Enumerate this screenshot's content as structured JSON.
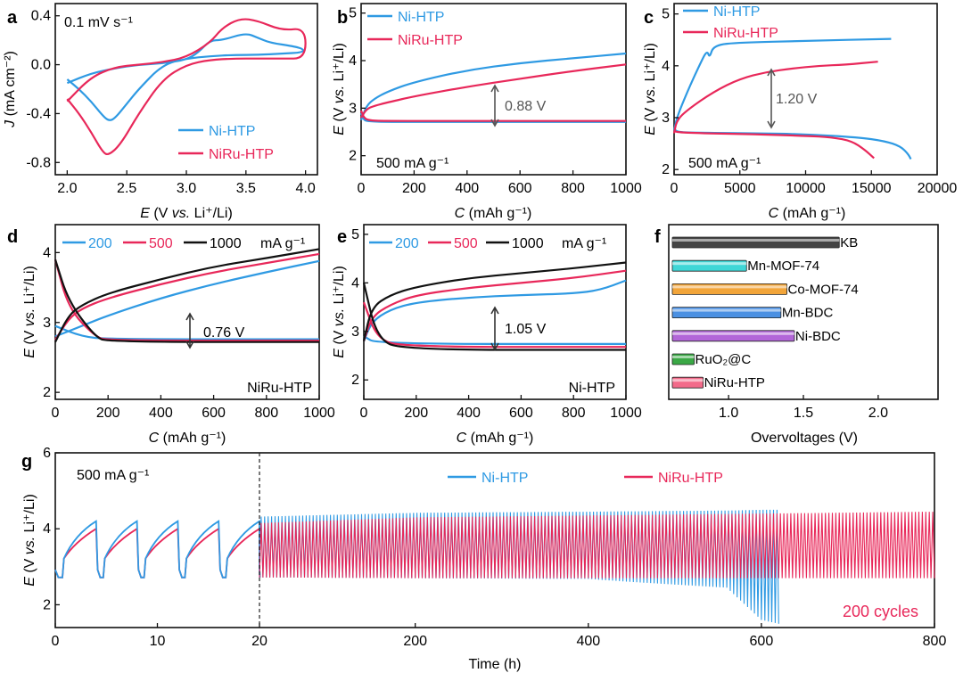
{
  "colors": {
    "blue": "#2f9ae3",
    "pink": "#e8285a",
    "black": "#111111",
    "gray": "#6b6b6b"
  },
  "panels": {
    "a": {
      "letter": "a",
      "annotation": "0.1 mV s⁻¹",
      "xlabel": [
        "E",
        " (V ",
        "vs.",
        " Li⁺/Li)"
      ],
      "ylabel": [
        "J",
        " (mA cm⁻²)"
      ],
      "xticks": [
        "2.0",
        "2.5",
        "3.0",
        "3.5",
        "4.0"
      ],
      "yticks": [
        "0.4",
        "0.0",
        "-0.4",
        "-0.8"
      ],
      "legend": [
        "Ni-HTP",
        "NiRu-HTP"
      ]
    },
    "b": {
      "letter": "b",
      "annotation": "500 mA g⁻¹",
      "gap_label": "0.88 V",
      "xlabel": [
        "C",
        " (mAh g⁻¹)"
      ],
      "ylabel": [
        "E",
        " (V ",
        "vs.",
        " Li⁺/Li)"
      ],
      "xticks": [
        "0",
        "200",
        "400",
        "600",
        "800",
        "1000"
      ],
      "yticks": [
        "2",
        "3",
        "4",
        "5"
      ],
      "legend": [
        "Ni-HTP",
        "NiRu-HTP"
      ]
    },
    "c": {
      "letter": "c",
      "annotation": "500 mA g⁻¹",
      "gap_label": "1.20 V",
      "xlabel": [
        "C",
        " (mAh g⁻¹)"
      ],
      "ylabel": [
        "E",
        " (V ",
        "vs.",
        " Li⁺/Li)"
      ],
      "xticks": [
        "0",
        "5000",
        "10000",
        "15000",
        "20000"
      ],
      "yticks": [
        "2",
        "3",
        "4",
        "5"
      ],
      "legend": [
        "Ni-HTP",
        "NiRu-HTP"
      ]
    },
    "d": {
      "letter": "d",
      "annotation": "NiRu-HTP",
      "gap_label": "0.76 V",
      "xlabel": [
        "C",
        " (mAh g⁻¹)"
      ],
      "ylabel": [
        "E",
        " (V ",
        "vs.",
        " Li⁺/Li)"
      ],
      "xticks": [
        "0",
        "200",
        "400",
        "600",
        "800",
        "1000"
      ],
      "yticks": [
        "2",
        "3",
        "4"
      ],
      "legend": [
        "200",
        "500",
        "1000"
      ],
      "legend_unit": "mA g⁻¹"
    },
    "e": {
      "letter": "e",
      "annotation": "Ni-HTP",
      "gap_label": "1.05 V",
      "xlabel": [
        "C",
        " (mAh g⁻¹)"
      ],
      "ylabel": [
        "E",
        " (V ",
        "vs.",
        " Li⁺/Li)"
      ],
      "xticks": [
        "0",
        "200",
        "400",
        "600",
        "800",
        "1000"
      ],
      "yticks": [
        "2",
        "3",
        "4",
        "5"
      ],
      "legend": [
        "200",
        "500",
        "1000"
      ],
      "legend_unit": "mA g⁻¹"
    },
    "f": {
      "letter": "f",
      "xlabel": "Overvoltages (V)",
      "xticks": [
        "1.0",
        "1.5",
        "2.0"
      ],
      "bars": [
        "KB",
        "Mn-MOF-74",
        "Co-MOF-74",
        "Mn-BDC",
        "Ni-BDC",
        "RuO₂@C",
        "NiRu-HTP"
      ]
    },
    "g": {
      "letter": "g",
      "annotation": "500 mA g⁻¹",
      "cycles_label": "200 cycles",
      "xlabel": "Time (h)",
      "ylabel": [
        "E",
        " (V ",
        "vs.",
        " Li⁺/Li)"
      ],
      "xticks": [
        "0",
        "10",
        "20",
        "200",
        "400",
        "600",
        "800"
      ],
      "yticks": [
        "2",
        "4",
        "6"
      ],
      "legend": [
        "Ni-HTP",
        "NiRu-HTP"
      ]
    }
  },
  "chart_data": [
    {
      "panel": "a",
      "type": "line",
      "xlabel": "E (V vs. Li+/Li)",
      "ylabel": "J (mA cm-2)",
      "xlim": [
        1.9,
        4.1
      ],
      "ylim": [
        -0.9,
        0.5
      ],
      "series": [
        {
          "name": "Ni-HTP",
          "color": "#2f9ae3",
          "x": [
            2.0,
            2.2,
            2.4,
            2.6,
            2.8,
            3.0,
            3.1,
            3.2,
            3.3,
            3.5,
            3.6,
            3.7,
            3.9,
            3.98,
            3.98,
            3.8,
            3.6,
            3.4,
            3.2,
            3.0,
            2.8,
            2.6,
            2.5,
            2.4,
            2.35,
            2.3,
            2.2,
            2.1,
            2.0
          ],
          "y": [
            -0.15,
            -0.07,
            -0.03,
            0.0,
            0.01,
            0.04,
            0.1,
            0.2,
            0.2,
            0.26,
            0.22,
            0.18,
            0.15,
            0.13,
            0.1,
            0.09,
            0.08,
            0.08,
            0.07,
            0.05,
            0.0,
            -0.2,
            -0.32,
            -0.44,
            -0.46,
            -0.42,
            -0.3,
            -0.2,
            -0.12
          ]
        },
        {
          "name": "NiRu-HTP",
          "color": "#e8285a",
          "x": [
            2.0,
            2.2,
            2.4,
            2.6,
            2.8,
            3.0,
            3.2,
            3.3,
            3.45,
            3.6,
            3.8,
            4.0,
            4.0,
            3.8,
            3.6,
            3.4,
            3.2,
            3.0,
            2.8,
            2.6,
            2.45,
            2.35,
            2.3,
            2.2,
            2.1,
            2.0
          ],
          "y": [
            -0.3,
            -0.1,
            -0.02,
            0.0,
            0.02,
            0.06,
            0.18,
            0.3,
            0.38,
            0.36,
            0.28,
            0.3,
            0.05,
            0.05,
            0.05,
            0.05,
            0.04,
            0.0,
            -0.12,
            -0.4,
            -0.65,
            -0.74,
            -0.72,
            -0.55,
            -0.4,
            -0.28
          ]
        }
      ]
    },
    {
      "panel": "b",
      "type": "line",
      "xlabel": "C (mAh g-1)",
      "ylabel": "E (V vs. Li+/Li)",
      "xlim": [
        0,
        1000
      ],
      "ylim": [
        1.6,
        5.2
      ],
      "series": [
        {
          "name": "Ni-HTP discharge",
          "color": "#2f9ae3",
          "x": [
            0,
            10,
            30,
            100,
            300,
            600,
            1000
          ],
          "y": [
            2.9,
            2.75,
            2.72,
            2.71,
            2.71,
            2.71,
            2.71
          ]
        },
        {
          "name": "Ni-HTP charge",
          "color": "#2f9ae3",
          "x": [
            0,
            20,
            50,
            100,
            200,
            400,
            600,
            800,
            1000
          ],
          "y": [
            2.75,
            3.05,
            3.2,
            3.35,
            3.55,
            3.8,
            3.95,
            4.05,
            4.15
          ]
        },
        {
          "name": "NiRu-HTP discharge",
          "color": "#e8285a",
          "x": [
            0,
            10,
            30,
            100,
            300,
            600,
            1000
          ],
          "y": [
            2.95,
            2.8,
            2.74,
            2.73,
            2.73,
            2.73,
            2.73
          ]
        },
        {
          "name": "NiRu-HTP charge",
          "color": "#e8285a",
          "x": [
            0,
            20,
            50,
            100,
            200,
            400,
            600,
            800,
            1000
          ],
          "y": [
            2.8,
            2.98,
            3.05,
            3.12,
            3.25,
            3.45,
            3.62,
            3.78,
            3.92
          ]
        }
      ]
    },
    {
      "panel": "c",
      "type": "line",
      "xlabel": "C (mAh g-1)",
      "ylabel": "E (V vs. Li+/Li)",
      "xlim": [
        0,
        20000
      ],
      "ylim": [
        1.9,
        5.2
      ],
      "series": [
        {
          "name": "Ni-HTP discharge",
          "color": "#2f9ae3",
          "x": [
            0,
            200,
            2000,
            6000,
            10000,
            14000,
            16000,
            17200,
            17800,
            18000
          ],
          "y": [
            2.8,
            2.72,
            2.71,
            2.7,
            2.68,
            2.62,
            2.55,
            2.45,
            2.3,
            2.2
          ]
        },
        {
          "name": "Ni-HTP charge",
          "color": "#2f9ae3",
          "x": [
            0,
            200,
            1000,
            2000,
            2500,
            2700,
            3000,
            5000,
            10000,
            16500
          ],
          "y": [
            2.75,
            3.0,
            3.5,
            4.05,
            4.3,
            4.15,
            4.4,
            4.45,
            4.48,
            4.52
          ]
        },
        {
          "name": "NiRu-HTP discharge",
          "color": "#e8285a",
          "x": [
            0,
            200,
            2000,
            6000,
            10000,
            12000,
            13500,
            14500,
            15200
          ],
          "y": [
            2.75,
            2.72,
            2.7,
            2.68,
            2.65,
            2.62,
            2.55,
            2.38,
            2.22
          ]
        },
        {
          "name": "NiRu-HTP charge",
          "color": "#e8285a",
          "x": [
            0,
            200,
            1000,
            3000,
            5000,
            7000,
            9000,
            11000,
            13000,
            15500
          ],
          "y": [
            2.7,
            2.95,
            3.15,
            3.5,
            3.75,
            3.88,
            3.95,
            4.0,
            4.02,
            4.08
          ]
        }
      ]
    },
    {
      "panel": "d",
      "type": "line",
      "xlabel": "C (mAh g-1)",
      "ylabel": "E (V vs. Li+/Li)",
      "xlim": [
        0,
        1000
      ],
      "ylim": [
        1.9,
        4.4
      ],
      "series": [
        {
          "name": "200",
          "color": "#2f9ae3",
          "x": [
            0,
            100,
            200,
            1000
          ],
          "y": [
            2.95,
            2.8,
            2.76,
            2.76
          ]
        },
        {
          "name": "200",
          "color": "#2f9ae3",
          "x": [
            0,
            100,
            200,
            400,
            600,
            800,
            1000
          ],
          "y": [
            2.8,
            2.95,
            3.1,
            3.35,
            3.55,
            3.72,
            3.88
          ]
        },
        {
          "name": "500",
          "color": "#e8285a",
          "x": [
            0,
            50,
            150,
            200,
            1000
          ],
          "y": [
            3.9,
            3.2,
            2.8,
            2.74,
            2.74
          ]
        },
        {
          "name": "500",
          "color": "#e8285a",
          "x": [
            0,
            50,
            100,
            200,
            400,
            600,
            800,
            1000
          ],
          "y": [
            2.75,
            3.05,
            3.2,
            3.35,
            3.55,
            3.72,
            3.85,
            3.98
          ]
        },
        {
          "name": "1000",
          "color": "#111111",
          "x": [
            0,
            50,
            150,
            200,
            1000
          ],
          "y": [
            3.9,
            3.3,
            2.8,
            2.72,
            2.72
          ]
        },
        {
          "name": "1000",
          "color": "#111111",
          "x": [
            0,
            50,
            100,
            200,
            400,
            600,
            800,
            1000
          ],
          "y": [
            2.72,
            3.1,
            3.25,
            3.42,
            3.62,
            3.8,
            3.92,
            4.05
          ]
        }
      ]
    },
    {
      "panel": "e",
      "type": "line",
      "xlabel": "C (mAh g-1)",
      "ylabel": "E (V vs. Li+/Li)",
      "xlim": [
        0,
        1000
      ],
      "ylim": [
        1.6,
        5.2
      ],
      "series": [
        {
          "name": "200",
          "color": "#2f9ae3",
          "x": [
            0,
            50,
            1000
          ],
          "y": [
            2.9,
            2.74,
            2.74
          ]
        },
        {
          "name": "200",
          "color": "#2f9ae3",
          "x": [
            0,
            30,
            100,
            200,
            400,
            600,
            800,
            900,
            1000
          ],
          "y": [
            2.8,
            3.2,
            3.45,
            3.6,
            3.7,
            3.75,
            3.78,
            3.85,
            4.05
          ]
        },
        {
          "name": "500",
          "color": "#e8285a",
          "x": [
            0,
            50,
            150,
            1000
          ],
          "y": [
            3.6,
            2.85,
            2.68,
            2.68
          ]
        },
        {
          "name": "500",
          "color": "#e8285a",
          "x": [
            0,
            30,
            100,
            200,
            400,
            600,
            800,
            1000
          ],
          "y": [
            2.8,
            3.3,
            3.55,
            3.75,
            3.9,
            4.0,
            4.1,
            4.25
          ]
        },
        {
          "name": "1000",
          "color": "#111111",
          "x": [
            0,
            50,
            150,
            1000
          ],
          "y": [
            4.0,
            2.85,
            2.62,
            2.62
          ]
        },
        {
          "name": "1000",
          "color": "#111111",
          "x": [
            0,
            30,
            100,
            200,
            400,
            600,
            800,
            1000
          ],
          "y": [
            2.8,
            3.5,
            3.75,
            3.92,
            4.1,
            4.2,
            4.3,
            4.42
          ]
        }
      ]
    },
    {
      "panel": "f",
      "type": "bar",
      "orientation": "horizontal",
      "xlabel": "Overvoltages (V)",
      "xlim": [
        0.6,
        2.4
      ],
      "categories": [
        "KB",
        "Mn-MOF-74",
        "Co-MOF-74",
        "Mn-BDC",
        "Ni-BDC",
        "RuO2@C",
        "NiRu-HTP"
      ],
      "values": [
        1.74,
        1.12,
        1.39,
        1.35,
        1.44,
        0.77,
        0.83
      ],
      "colors": [
        "#444444",
        "#3fd6d6",
        "#f2a53a",
        "#4a90e2",
        "#b266d8",
        "#3aa845",
        "#f26b8a"
      ]
    },
    {
      "panel": "g",
      "type": "line",
      "xlabel": "Time (h)",
      "ylabel": "E (V vs. Li+/Li)",
      "xticks": [
        0,
        10,
        20,
        200,
        400,
        600,
        800
      ],
      "ylim": [
        1.4,
        6.0
      ],
      "series": [
        {
          "name": "Ni-HTP",
          "color": "#2f9ae3",
          "cycle_peaks_h": [
            4,
            8,
            12,
            16,
            20
          ],
          "charge_peak_V": 4.2,
          "discharge_V": 2.72,
          "time_h": [
            20,
            200,
            400,
            450,
            560,
            600,
            620
          ],
          "upper_V": [
            4.32,
            4.42,
            4.45,
            4.46,
            4.48,
            4.5,
            4.5
          ],
          "lower_V": [
            2.72,
            2.7,
            2.68,
            2.6,
            2.45,
            1.6,
            1.5
          ]
        },
        {
          "name": "NiRu-HTP",
          "color": "#e8285a",
          "cycle_peaks_h": [
            4,
            8,
            12,
            16,
            20
          ],
          "charge_peak_V": 4.0,
          "discharge_V": 2.72,
          "time_h": [
            20,
            200,
            400,
            600,
            800
          ],
          "upper_V": [
            4.15,
            4.3,
            4.35,
            4.4,
            4.45
          ],
          "lower_V": [
            2.72,
            2.7,
            2.7,
            2.7,
            2.7
          ]
        }
      ]
    }
  ]
}
